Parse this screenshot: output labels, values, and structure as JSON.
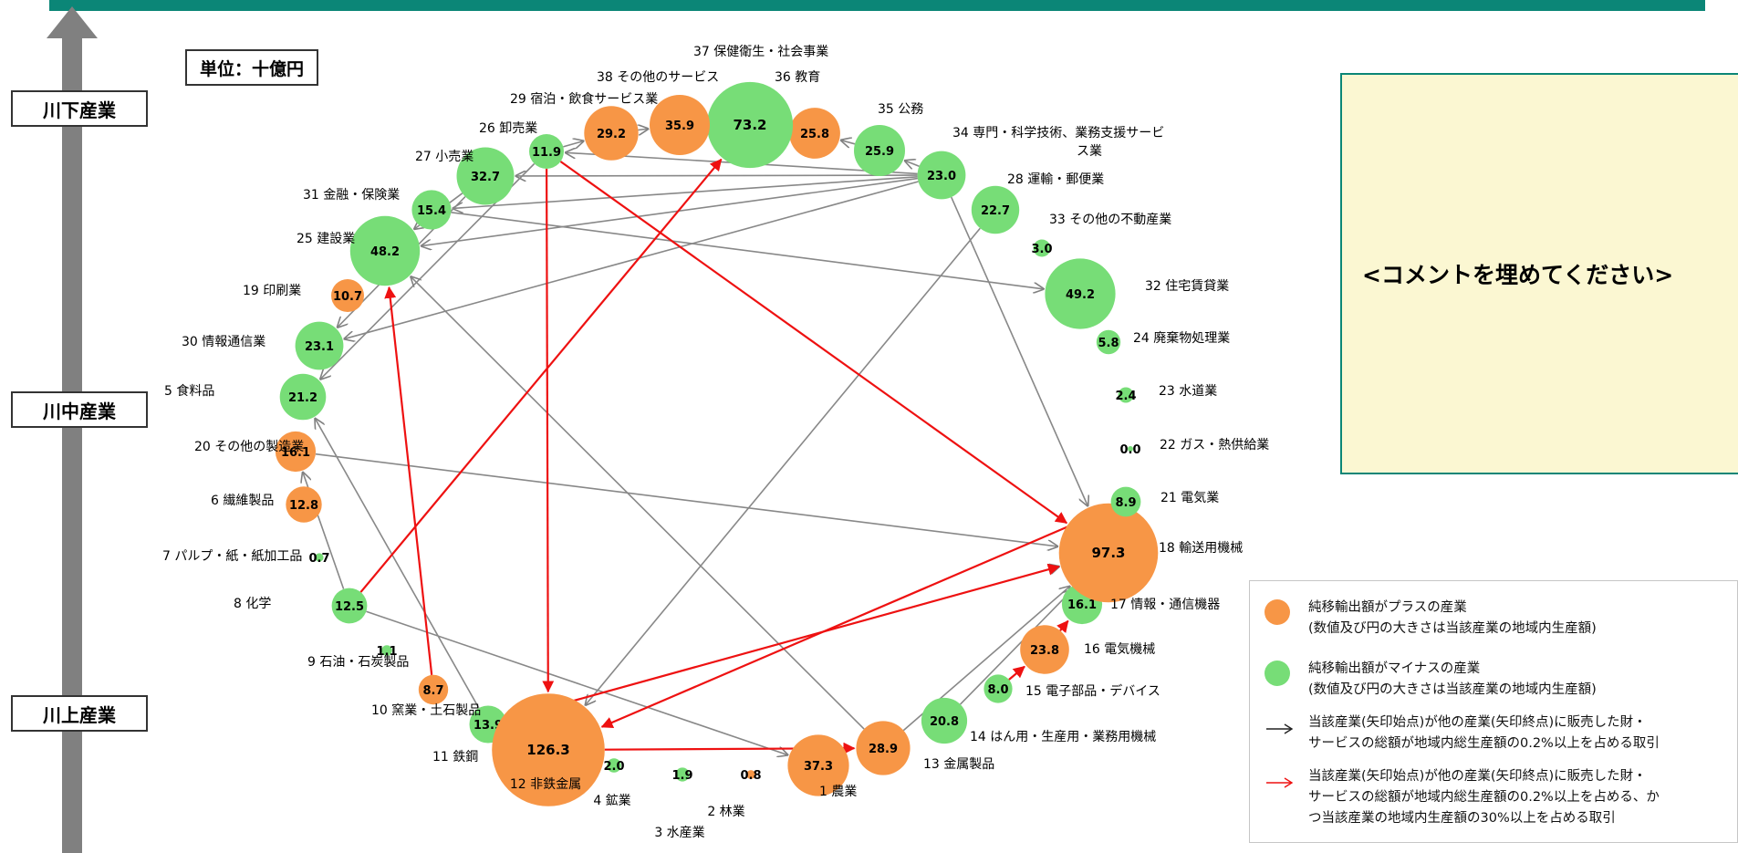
{
  "unit_label": "単位：十億円",
  "tiers": {
    "downstream": "川下産業",
    "midstream": "川中産業",
    "upstream": "川上産業"
  },
  "comment_placeholder": "<コメントを埋めてください>",
  "colors": {
    "positive": "#f79646",
    "negative": "#77dd77",
    "normal_edge": "#888888",
    "strong_edge": "#ee1111",
    "accent": "#0b8677"
  },
  "legend": {
    "positive": [
      "純移輸出額がプラスの産業",
      "(数値及び円の大きさは当該産業の地域内生産額)"
    ],
    "negative": [
      "純移輸出額がマイナスの産業",
      "(数値及び円の大きさは当該産業の地域内生産額)"
    ],
    "black_arrow": [
      "当該産業(矢印始点)が他の産業(矢印終点)に販売した財・",
      "サービスの総額が地域内総生産額の0.2%以上を占める取引"
    ],
    "red_arrow": [
      "当該産業(矢印始点)が他の産業(矢印終点)に販売した財・",
      "サービスの総額が地域内総生産額の0.2%以上を占める、か",
      "つ当該産業の地域内生産額の30%以上を占める取引"
    ]
  },
  "nodes": [
    {
      "id": 1,
      "label": "1 農業",
      "value": "37.3",
      "v": 37.3,
      "sign": "positive"
    },
    {
      "id": 2,
      "label": "2 林業",
      "value": "0.8",
      "v": 0.8,
      "sign": "positive"
    },
    {
      "id": 3,
      "label": "3 水産業",
      "value": "1.9",
      "v": 1.9,
      "sign": "negative"
    },
    {
      "id": 4,
      "label": "4 鉱業",
      "value": "2.0",
      "v": 2.0,
      "sign": "negative"
    },
    {
      "id": 5,
      "label": "5 食料品",
      "value": "21.2",
      "v": 21.2,
      "sign": "negative"
    },
    {
      "id": 6,
      "label": "6 繊維製品",
      "value": "12.8",
      "v": 12.8,
      "sign": "positive"
    },
    {
      "id": 7,
      "label": "7 パルプ・紙・紙加工品",
      "value": "0.7",
      "v": 0.7,
      "sign": "negative"
    },
    {
      "id": 8,
      "label": "8 化学",
      "value": "12.5",
      "v": 12.5,
      "sign": "negative"
    },
    {
      "id": 9,
      "label": "9 石油・石炭製品",
      "value": "1.1",
      "v": 1.1,
      "sign": "negative"
    },
    {
      "id": 10,
      "label": "10 窯業・土石製品",
      "value": "8.7",
      "v": 8.7,
      "sign": "positive"
    },
    {
      "id": 11,
      "label": "11 鉄鋼",
      "value": "13.9",
      "v": 13.9,
      "sign": "negative"
    },
    {
      "id": 12,
      "label": "12 非鉄金属",
      "value": "126.3",
      "v": 126.3,
      "sign": "positive"
    },
    {
      "id": 13,
      "label": "13 金属製品",
      "value": "28.9",
      "v": 28.9,
      "sign": "positive"
    },
    {
      "id": 14,
      "label": "14 はん用・生産用・業務用機械",
      "value": "20.8",
      "v": 20.8,
      "sign": "negative"
    },
    {
      "id": 15,
      "label": "15 電子部品・デバイス",
      "value": "8.0",
      "v": 8.0,
      "sign": "negative"
    },
    {
      "id": 16,
      "label": "16 電気機械",
      "value": "23.8",
      "v": 23.8,
      "sign": "positive"
    },
    {
      "id": 17,
      "label": "17 情報・通信機器",
      "value": "16.1",
      "v": 16.1,
      "sign": "negative"
    },
    {
      "id": 18,
      "label": "18 輸送用機械",
      "value": "97.3",
      "v": 97.3,
      "sign": "positive"
    },
    {
      "id": 19,
      "label": "19 印刷業",
      "value": "10.7",
      "v": 10.7,
      "sign": "positive"
    },
    {
      "id": 20,
      "label": "20 その他の製造業",
      "value": "16.1",
      "v": 16.1,
      "sign": "positive"
    },
    {
      "id": 21,
      "label": "21 電気業",
      "value": "8.9",
      "v": 8.9,
      "sign": "negative"
    },
    {
      "id": 22,
      "label": "22 ガス・熱供給業",
      "value": "0.0",
      "v": 0.0,
      "sign": "negative"
    },
    {
      "id": 23,
      "label": "23 水道業",
      "value": "2.4",
      "v": 2.4,
      "sign": "negative"
    },
    {
      "id": 24,
      "label": "24 廃棄物処理業",
      "value": "5.8",
      "v": 5.8,
      "sign": "negative"
    },
    {
      "id": 25,
      "label": "25 建設業",
      "value": "48.2",
      "v": 48.2,
      "sign": "negative"
    },
    {
      "id": 26,
      "label": "26 卸売業",
      "value": "11.9",
      "v": 11.9,
      "sign": "negative"
    },
    {
      "id": 27,
      "label": "27 小売業",
      "value": "32.7",
      "v": 32.7,
      "sign": "negative"
    },
    {
      "id": 28,
      "label": "28 運輸・郵便業",
      "value": "22.7",
      "v": 22.7,
      "sign": "negative"
    },
    {
      "id": 29,
      "label": "29 宿泊・飲食サービス業",
      "value": "29.2",
      "v": 29.2,
      "sign": "positive"
    },
    {
      "id": 30,
      "label": "30 情報通信業",
      "value": "23.1",
      "v": 23.1,
      "sign": "negative"
    },
    {
      "id": 31,
      "label": "31 金融・保険業",
      "value": "15.4",
      "v": 15.4,
      "sign": "negative"
    },
    {
      "id": 32,
      "label": "32 住宅賃貸業",
      "value": "49.2",
      "v": 49.2,
      "sign": "negative"
    },
    {
      "id": 33,
      "label": "33 その他の不動産業",
      "value": "3.0",
      "v": 3.0,
      "sign": "negative"
    },
    {
      "id": 34,
      "label": [
        "34 専門・科学技術、業務支援サービ",
        "ス業"
      ],
      "value": "23.0",
      "v": 23.0,
      "sign": "negative"
    },
    {
      "id": 35,
      "label": "35 公務",
      "value": "25.9",
      "v": 25.9,
      "sign": "negative"
    },
    {
      "id": 36,
      "label": "36 教育",
      "value": "25.8",
      "v": 25.8,
      "sign": "positive"
    },
    {
      "id": 37,
      "label": "37 保健衛生・社会事業",
      "value": "73.2",
      "v": 73.2,
      "sign": "negative"
    },
    {
      "id": 38,
      "label": "38 その他のサービス",
      "value": "35.9",
      "v": 35.9,
      "sign": "positive"
    }
  ],
  "edges": [
    {
      "from": 34,
      "to": 25,
      "strong": false
    },
    {
      "from": 34,
      "to": 27,
      "strong": false
    },
    {
      "from": 34,
      "to": 31,
      "strong": false
    },
    {
      "from": 34,
      "to": 35,
      "strong": false
    },
    {
      "from": 34,
      "to": 26,
      "strong": false
    },
    {
      "from": 34,
      "to": 30,
      "strong": false
    },
    {
      "from": 34,
      "to": 18,
      "strong": false
    },
    {
      "from": 35,
      "to": 36,
      "strong": false
    },
    {
      "from": 26,
      "to": 29,
      "strong": false
    },
    {
      "from": 29,
      "to": 38,
      "strong": false
    },
    {
      "from": 38,
      "to": 37,
      "strong": false
    },
    {
      "from": 26,
      "to": 5,
      "strong": false
    },
    {
      "from": 27,
      "to": 25,
      "strong": false
    },
    {
      "from": 27,
      "to": 30,
      "strong": false
    },
    {
      "from": 31,
      "to": 32,
      "strong": false
    },
    {
      "from": 28,
      "to": 12,
      "strong": false
    },
    {
      "from": 8,
      "to": 20,
      "strong": false
    },
    {
      "from": 8,
      "to": 1,
      "strong": false
    },
    {
      "from": 11,
      "to": 5,
      "strong": false
    },
    {
      "from": 11,
      "to": 18,
      "strong": false
    },
    {
      "from": 13,
      "to": 25,
      "strong": false
    },
    {
      "from": 13,
      "to": 18,
      "strong": false
    },
    {
      "from": 14,
      "to": 18,
      "strong": false
    },
    {
      "from": 20,
      "to": 18,
      "strong": false
    },
    {
      "from": 26,
      "to": 12,
      "strong": true
    },
    {
      "from": 26,
      "to": 18,
      "strong": true
    },
    {
      "from": 8,
      "to": 37,
      "strong": true
    },
    {
      "from": 10,
      "to": 25,
      "strong": true
    },
    {
      "from": 12,
      "to": 13,
      "strong": true
    },
    {
      "from": 11,
      "to": 18,
      "strong": true
    },
    {
      "from": 21,
      "to": 12,
      "strong": true
    },
    {
      "from": 15,
      "to": 16,
      "strong": true
    },
    {
      "from": 16,
      "to": 17,
      "strong": true
    }
  ]
}
